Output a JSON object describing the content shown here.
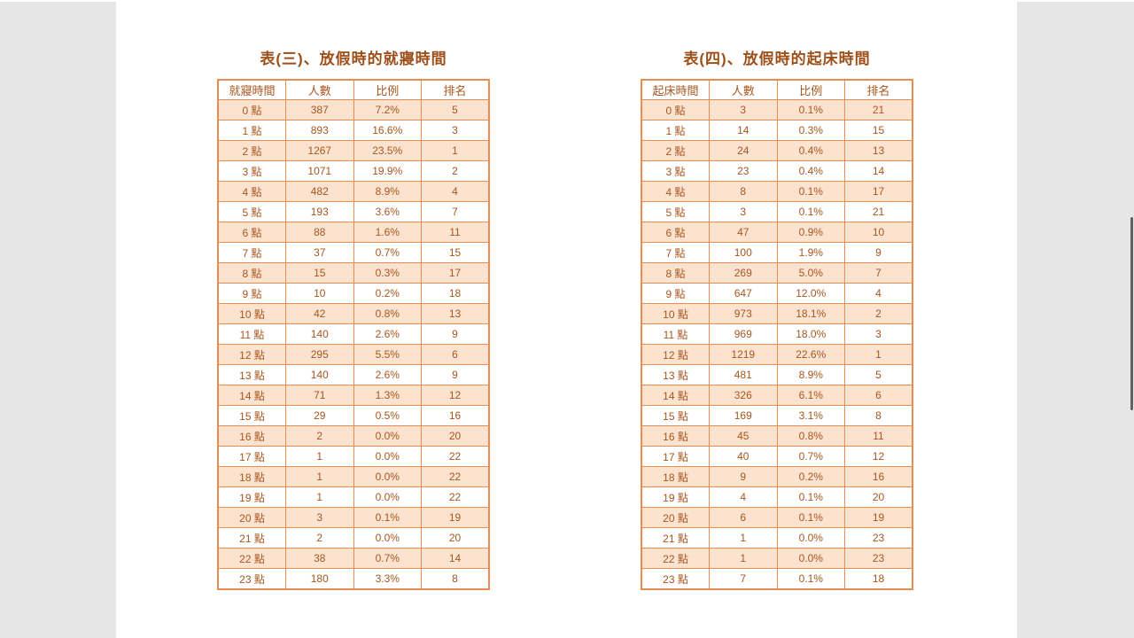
{
  "colors": {
    "surround_bg": "#e6e6e6",
    "page_bg": "#ffffff",
    "accent_border": "#e98c52",
    "band_fill": "#fbe3d0",
    "cell_text": "#a8561f",
    "title_text": "#9d4f1a"
  },
  "tables": [
    {
      "title": "表(三)、放假時的就寢時間",
      "columns": [
        "就寢時間",
        "人數",
        "比例",
        "排名"
      ],
      "rows": [
        [
          "0 點",
          "387",
          "7.2%",
          "5"
        ],
        [
          "1 點",
          "893",
          "16.6%",
          "3"
        ],
        [
          "2 點",
          "1267",
          "23.5%",
          "1"
        ],
        [
          "3 點",
          "1071",
          "19.9%",
          "2"
        ],
        [
          "4 點",
          "482",
          "8.9%",
          "4"
        ],
        [
          "5 點",
          "193",
          "3.6%",
          "7"
        ],
        [
          "6 點",
          "88",
          "1.6%",
          "11"
        ],
        [
          "7 點",
          "37",
          "0.7%",
          "15"
        ],
        [
          "8 點",
          "15",
          "0.3%",
          "17"
        ],
        [
          "9 點",
          "10",
          "0.2%",
          "18"
        ],
        [
          "10 點",
          "42",
          "0.8%",
          "13"
        ],
        [
          "11 點",
          "140",
          "2.6%",
          "9"
        ],
        [
          "12 點",
          "295",
          "5.5%",
          "6"
        ],
        [
          "13 點",
          "140",
          "2.6%",
          "9"
        ],
        [
          "14 點",
          "71",
          "1.3%",
          "12"
        ],
        [
          "15 點",
          "29",
          "0.5%",
          "16"
        ],
        [
          "16 點",
          "2",
          "0.0%",
          "20"
        ],
        [
          "17 點",
          "1",
          "0.0%",
          "22"
        ],
        [
          "18 點",
          "1",
          "0.0%",
          "22"
        ],
        [
          "19 點",
          "1",
          "0.0%",
          "22"
        ],
        [
          "20 點",
          "3",
          "0.1%",
          "19"
        ],
        [
          "21 點",
          "2",
          "0.0%",
          "20"
        ],
        [
          "22 點",
          "38",
          "0.7%",
          "14"
        ],
        [
          "23 點",
          "180",
          "3.3%",
          "8"
        ]
      ]
    },
    {
      "title": "表(四)、放假時的起床時間",
      "columns": [
        "起床時間",
        "人數",
        "比例",
        "排名"
      ],
      "rows": [
        [
          "0 點",
          "3",
          "0.1%",
          "21"
        ],
        [
          "1 點",
          "14",
          "0.3%",
          "15"
        ],
        [
          "2 點",
          "24",
          "0.4%",
          "13"
        ],
        [
          "3 點",
          "23",
          "0.4%",
          "14"
        ],
        [
          "4 點",
          "8",
          "0.1%",
          "17"
        ],
        [
          "5 點",
          "3",
          "0.1%",
          "21"
        ],
        [
          "6 點",
          "47",
          "0.9%",
          "10"
        ],
        [
          "7 點",
          "100",
          "1.9%",
          "9"
        ],
        [
          "8 點",
          "269",
          "5.0%",
          "7"
        ],
        [
          "9 點",
          "647",
          "12.0%",
          "4"
        ],
        [
          "10 點",
          "973",
          "18.1%",
          "2"
        ],
        [
          "11 點",
          "969",
          "18.0%",
          "3"
        ],
        [
          "12 點",
          "1219",
          "22.6%",
          "1"
        ],
        [
          "13 點",
          "481",
          "8.9%",
          "5"
        ],
        [
          "14 點",
          "326",
          "6.1%",
          "6"
        ],
        [
          "15 點",
          "169",
          "3.1%",
          "8"
        ],
        [
          "16 點",
          "45",
          "0.8%",
          "11"
        ],
        [
          "17 點",
          "40",
          "0.7%",
          "12"
        ],
        [
          "18 點",
          "9",
          "0.2%",
          "16"
        ],
        [
          "19 點",
          "4",
          "0.1%",
          "20"
        ],
        [
          "20 點",
          "6",
          "0.1%",
          "19"
        ],
        [
          "21 點",
          "1",
          "0.0%",
          "23"
        ],
        [
          "22 點",
          "1",
          "0.0%",
          "23"
        ],
        [
          "23 點",
          "7",
          "0.1%",
          "18"
        ]
      ]
    }
  ]
}
